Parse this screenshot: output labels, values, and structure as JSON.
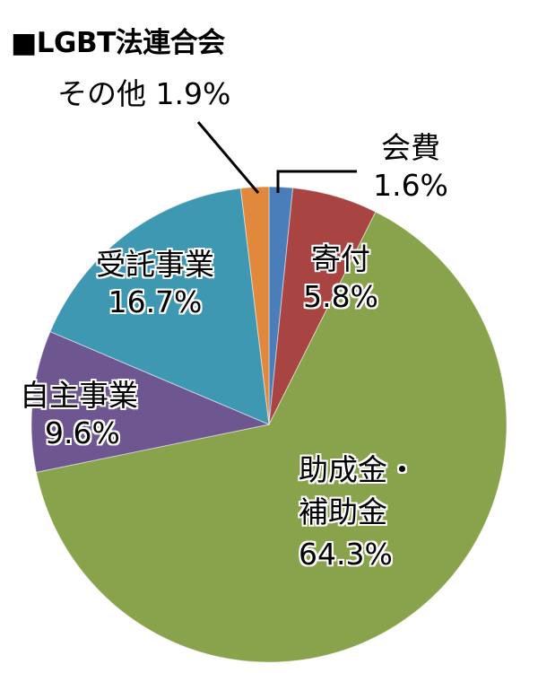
{
  "chart_data": {
    "type": "pie",
    "title": "■LGBT法連合会",
    "start_angle_deg": 0,
    "direction": "clockwise",
    "slices": [
      {
        "label": "会費",
        "value": 1.6,
        "display": "1.6%",
        "color": "#4A7EBB"
      },
      {
        "label": "寄付",
        "value": 5.8,
        "display": "5.8%",
        "color": "#A84543"
      },
      {
        "label": "助成金・補助金",
        "value": 64.3,
        "display": "64.3%",
        "color": "#88A34C"
      },
      {
        "label": "自主事業",
        "value": 9.6,
        "display": "9.6%",
        "color": "#6E5690"
      },
      {
        "label": "受託事業",
        "value": 16.7,
        "display": "16.7%",
        "color": "#3E98B2"
      },
      {
        "label": "その他",
        "value": 1.9,
        "display": "1.9%",
        "color": "#E0883B"
      }
    ],
    "legend": "none",
    "center": [
      300,
      473
    ],
    "radius": 265
  },
  "labels": {
    "title": "■LGBT法連合会",
    "sonota": "その他 1.9%",
    "kaihi_name": "会費",
    "kaihi_pct": "1.6%",
    "kifu_name": "寄付",
    "kifu_pct": "5.8%",
    "josei_line1": "助成金・",
    "josei_line2": "補助金",
    "josei_pct": "64.3%",
    "jishu_name": "自主事業",
    "jishu_pct": "9.6%",
    "jutaku_name": "受託事業",
    "jutaku_pct": "16.7%"
  }
}
